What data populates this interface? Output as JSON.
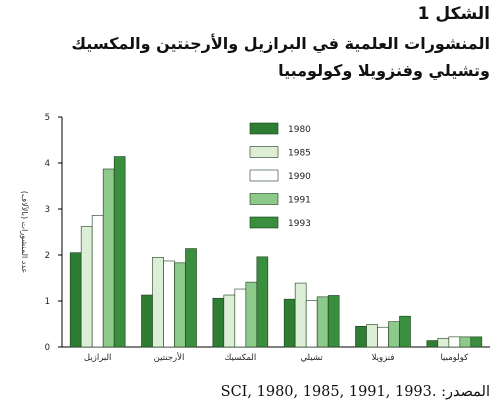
{
  "figure_label": "الشكل 1",
  "title": "المنشورات العلمية في البرازيل والأرجنتين والمكسيك وتشيلي وفنزويلا وكولومبيا",
  "source": "المصدر: .SCI, 1980, 1985, 1991, 1993",
  "colors": {
    "1980": "#2f7d32",
    "1985": "#dcefd6",
    "1990": "#ffffff",
    "1991": "#8dc98a",
    "1993": "#3a8f3e",
    "stroke": "#1b3d1c",
    "axis": "#000000"
  },
  "chart_data": {
    "type": "bar",
    "title": "",
    "xlabel": "",
    "ylabel": "عدد المنشورات (بالآلاف)",
    "ylim": [
      0,
      5
    ],
    "yticks": [
      0,
      1,
      2,
      3,
      4,
      5
    ],
    "grid": false,
    "legend_position": "top-right",
    "categories": [
      "البرازيل",
      "الأرجنتين",
      "المكسيك",
      "تشيلي",
      "فنزويلا",
      "كولومبيا"
    ],
    "series": [
      {
        "name": "1980",
        "values": [
          2.05,
          1.13,
          1.06,
          1.04,
          0.45,
          0.14
        ]
      },
      {
        "name": "1985",
        "values": [
          2.62,
          1.95,
          1.13,
          1.39,
          0.49,
          0.19
        ]
      },
      {
        "name": "1990",
        "values": [
          2.86,
          1.87,
          1.26,
          1.01,
          0.43,
          0.22
        ]
      },
      {
        "name": "1991",
        "values": [
          3.87,
          1.83,
          1.41,
          1.09,
          0.55,
          0.22
        ]
      },
      {
        "name": "1993",
        "values": [
          4.14,
          2.14,
          1.96,
          1.12,
          0.67,
          0.22
        ]
      }
    ]
  }
}
